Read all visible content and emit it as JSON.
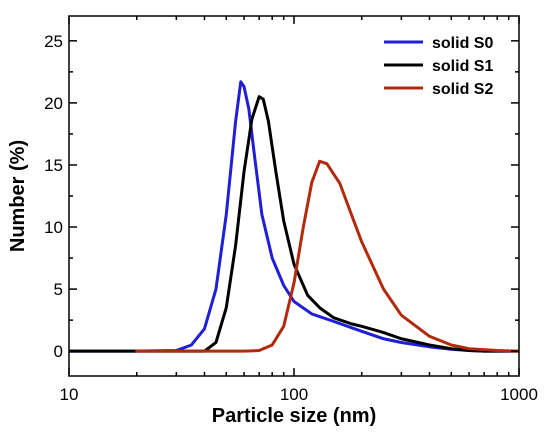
{
  "chart_data": {
    "type": "line",
    "title": "",
    "xlabel": "Particle size (nm)",
    "ylabel": "Number (%)",
    "xscale": "log",
    "xlim": [
      10,
      1000
    ],
    "ylim": [
      -2,
      27
    ],
    "xticks": [
      10,
      100,
      1000
    ],
    "xtick_labels": [
      "10",
      "100",
      "1000"
    ],
    "yticks": [
      0,
      5,
      10,
      15,
      20,
      25
    ],
    "ytick_labels": [
      "0",
      "5",
      "10",
      "15",
      "20",
      "25"
    ],
    "grid": false,
    "legend": "top-right",
    "series": [
      {
        "name": "solid S0",
        "color": "#1f1fd6",
        "points": [
          [
            10,
            0
          ],
          [
            20,
            0
          ],
          [
            30,
            0.05
          ],
          [
            35,
            0.5
          ],
          [
            40,
            1.8
          ],
          [
            45,
            5.0
          ],
          [
            50,
            11.0
          ],
          [
            55,
            18.5
          ],
          [
            58,
            21.7
          ],
          [
            60,
            21.3
          ],
          [
            63,
            19.5
          ],
          [
            67,
            15.5
          ],
          [
            72,
            11.0
          ],
          [
            80,
            7.5
          ],
          [
            90,
            5.3
          ],
          [
            100,
            4.0
          ],
          [
            120,
            3.0
          ],
          [
            150,
            2.4
          ],
          [
            200,
            1.6
          ],
          [
            250,
            1.0
          ],
          [
            300,
            0.7
          ],
          [
            400,
            0.35
          ],
          [
            500,
            0.15
          ],
          [
            600,
            0.05
          ],
          [
            700,
            0
          ],
          [
            1000,
            0
          ]
        ]
      },
      {
        "name": "solid S1",
        "color": "#000000",
        "points": [
          [
            10,
            0
          ],
          [
            20,
            0
          ],
          [
            40,
            0
          ],
          [
            45,
            0.7
          ],
          [
            50,
            3.5
          ],
          [
            55,
            8.5
          ],
          [
            60,
            14.5
          ],
          [
            65,
            18.7
          ],
          [
            70,
            20.5
          ],
          [
            73,
            20.3
          ],
          [
            77,
            18.5
          ],
          [
            83,
            14.5
          ],
          [
            90,
            10.5
          ],
          [
            100,
            7.0
          ],
          [
            115,
            4.5
          ],
          [
            130,
            3.5
          ],
          [
            150,
            2.7
          ],
          [
            180,
            2.2
          ],
          [
            200,
            2.0
          ],
          [
            250,
            1.5
          ],
          [
            300,
            1.0
          ],
          [
            400,
            0.5
          ],
          [
            500,
            0.2
          ],
          [
            600,
            0.05
          ],
          [
            700,
            0
          ],
          [
            1000,
            0
          ]
        ]
      },
      {
        "name": "solid S2",
        "color": "#b22a0e",
        "points": [
          [
            20,
            0
          ],
          [
            60,
            0
          ],
          [
            70,
            0.05
          ],
          [
            80,
            0.5
          ],
          [
            90,
            2.0
          ],
          [
            100,
            5.5
          ],
          [
            110,
            10.0
          ],
          [
            120,
            13.6
          ],
          [
            130,
            15.3
          ],
          [
            140,
            15.1
          ],
          [
            160,
            13.5
          ],
          [
            180,
            11.0
          ],
          [
            200,
            8.8
          ],
          [
            250,
            5.0
          ],
          [
            300,
            2.9
          ],
          [
            400,
            1.2
          ],
          [
            500,
            0.5
          ],
          [
            600,
            0.2
          ],
          [
            800,
            0.05
          ],
          [
            1000,
            0
          ]
        ]
      }
    ]
  }
}
